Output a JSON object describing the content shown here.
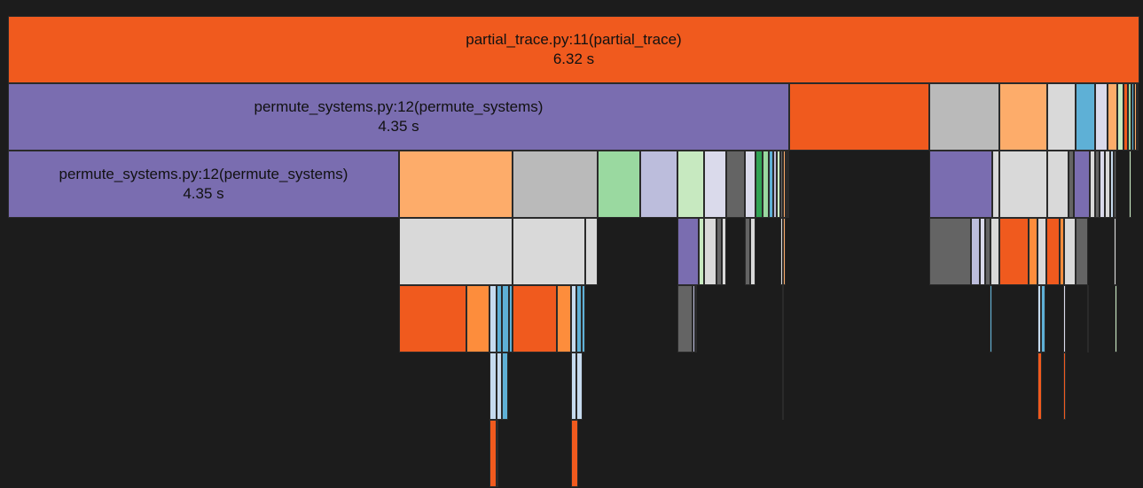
{
  "chart_data": {
    "type": "icicle",
    "title": "",
    "unit": "s",
    "labeled_nodes": [
      {
        "name": "partial_trace.py:11(partial_trace)",
        "time": "6.32 s",
        "depth": 0,
        "color": "#f05a1e"
      },
      {
        "name": "permute_systems.py:12(permute_systems)",
        "time": "4.35 s",
        "depth": 1,
        "color": "#7a6db0"
      },
      {
        "name": "permute_systems.py:12(permute_systems)",
        "time": "4.35 s",
        "depth": 2,
        "color": "#7a6db0"
      }
    ],
    "palette": {
      "orange": "#f05a1e",
      "purple": "#7a6db0",
      "light_orange": "#fdac6a",
      "gray": "#bababa",
      "light_gray": "#d9d9d9",
      "dark_gray": "#646464",
      "green": "#9ad9a0",
      "pale_green": "#c7e9c0",
      "lavender": "#bcbddc",
      "pale_lavender": "#dadaeb",
      "blue": "#5eb0d6",
      "pale_blue": "#c6dbef",
      "mid_orange": "#fd8d3c",
      "teal": "#31a354"
    }
  }
}
